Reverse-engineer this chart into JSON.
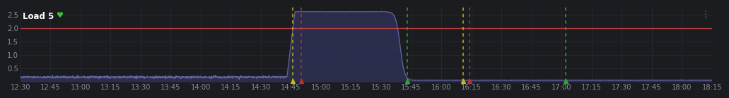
{
  "title": "Load 5",
  "bg_color": "#1a1c20",
  "grid_color": "#2a2d35",
  "text_color": "#8a8d96",
  "line_color": "#6668a8",
  "fill_color": "#383a6a",
  "threshold_value": 2.0,
  "threshold_color": "#d04040",
  "ylim": [
    0,
    2.8
  ],
  "yticks": [
    0,
    0.5,
    1.0,
    1.5,
    2.0,
    2.5
  ],
  "x_start_minutes": 0,
  "x_end_minutes": 345,
  "x_tick_labels": [
    "12:30",
    "12:45",
    "13:00",
    "13:15",
    "13:30",
    "13:45",
    "14:00",
    "14:15",
    "14:30",
    "14:45",
    "15:00",
    "15:15",
    "15:30",
    "15:45",
    "16:00",
    "16:15",
    "16:30",
    "16:45",
    "17:00",
    "17:15",
    "17:30",
    "17:45",
    "18:00",
    "18:15"
  ],
  "x_tick_positions": [
    0,
    15,
    30,
    45,
    60,
    75,
    90,
    105,
    120,
    135,
    150,
    165,
    180,
    195,
    210,
    225,
    240,
    255,
    270,
    285,
    300,
    315,
    330,
    345
  ],
  "baseline_value": 0.18,
  "peak_value": 2.62,
  "rise_start": 133,
  "rise_end": 137,
  "plateau_end": 183,
  "fall_end": 196,
  "post_fall_value": 0.06,
  "vertical_lines": [
    {
      "x": 136,
      "color": "#c8b820",
      "linestyle": "dashed"
    },
    {
      "x": 140,
      "color": "#c03030",
      "linestyle": "dashed"
    },
    {
      "x": 193,
      "color": "#30a830",
      "linestyle": "dashed"
    },
    {
      "x": 221,
      "color": "#c8b820",
      "linestyle": "dashed"
    },
    {
      "x": 224,
      "color": "#c03030",
      "linestyle": "dashed"
    },
    {
      "x": 272,
      "color": "#30a830",
      "linestyle": "dashed"
    }
  ],
  "heart_color": "#40c040",
  "menu_color": "#707070",
  "noise_seed": 42,
  "noise_amplitude": 0.022
}
